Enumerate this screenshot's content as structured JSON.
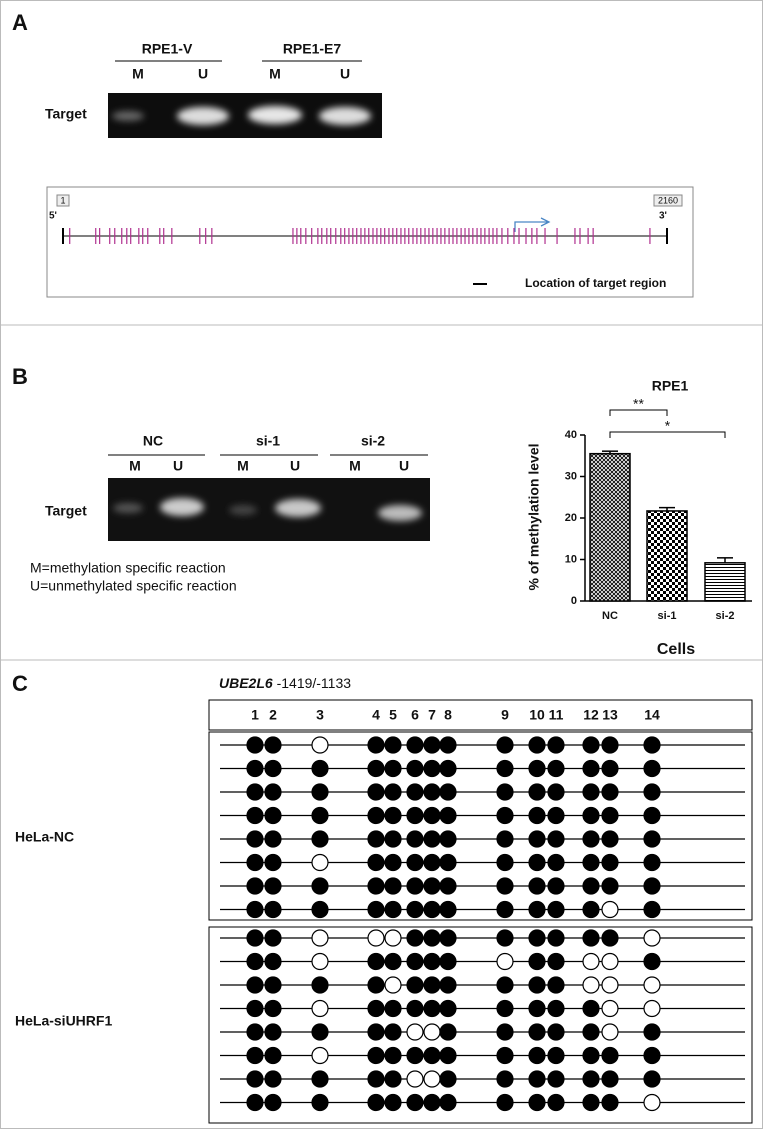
{
  "panel_a": {
    "label": "A",
    "gel": {
      "groups": [
        "RPE1-V",
        "RPE1-E7"
      ],
      "lanes": [
        "M",
        "U",
        "M",
        "U"
      ],
      "row_label": "Target"
    },
    "map": {
      "start": 1,
      "end": 2160,
      "five_prime": "5'",
      "three_prime": "3'",
      "legend": "Location of target region",
      "cpg_positions": [
        25,
        118,
        132,
        168,
        186,
        211,
        229,
        243,
        272,
        286,
        304,
        347,
        361,
        390,
        490,
        511,
        533,
        823,
        837,
        851,
        869,
        890,
        912,
        926,
        944,
        958,
        976,
        994,
        1008,
        1023,
        1037,
        1051,
        1066,
        1080,
        1094,
        1109,
        1123,
        1137,
        1151,
        1166,
        1180,
        1194,
        1209,
        1223,
        1237,
        1252,
        1266,
        1280,
        1295,
        1309,
        1323,
        1338,
        1352,
        1366,
        1381,
        1395,
        1409,
        1424,
        1438,
        1452,
        1466,
        1481,
        1495,
        1509,
        1524,
        1538,
        1552,
        1570,
        1591,
        1613,
        1631,
        1656,
        1677,
        1695,
        1724,
        1767,
        1831,
        1849,
        1878,
        1896,
        2099
      ]
    }
  },
  "panel_b": {
    "label": "B",
    "gel": {
      "groups": [
        "NC",
        "si-1",
        "si-2"
      ],
      "lanes": [
        "M",
        "U",
        "M",
        "U",
        "M",
        "U"
      ],
      "row_label": "Target"
    },
    "legend": [
      "M=methylation specific reaction",
      "U=unmethylated specific reaction"
    ]
  },
  "chart_data": {
    "type": "bar",
    "title": "RPE1",
    "x_label": "Cells",
    "y_label": "% of methylation level",
    "categories": [
      "NC",
      "si-1",
      "si-2"
    ],
    "values": [
      35.5,
      21.7,
      9.2
    ],
    "errors": [
      0.6,
      0.8,
      1.2
    ],
    "ylim": [
      0,
      40
    ],
    "yticks": [
      0,
      10,
      20,
      30,
      40
    ],
    "annotations": [
      "**",
      "*"
    ]
  },
  "panel_c": {
    "label": "C",
    "gene": "UBE2L6",
    "region": "-1419/-1133",
    "sites": [
      1,
      2,
      3,
      4,
      5,
      6,
      7,
      8,
      9,
      10,
      11,
      12,
      13,
      14
    ],
    "groups": [
      {
        "label": "HeLa-NC",
        "rows": [
          [
            1,
            1,
            0,
            1,
            1,
            1,
            1,
            1,
            1,
            1,
            1,
            1,
            1,
            1
          ],
          [
            1,
            1,
            1,
            1,
            1,
            1,
            1,
            1,
            1,
            1,
            1,
            1,
            1,
            1
          ],
          [
            1,
            1,
            1,
            1,
            1,
            1,
            1,
            1,
            1,
            1,
            1,
            1,
            1,
            1
          ],
          [
            1,
            1,
            1,
            1,
            1,
            1,
            1,
            1,
            1,
            1,
            1,
            1,
            1,
            1
          ],
          [
            1,
            1,
            1,
            1,
            1,
            1,
            1,
            1,
            1,
            1,
            1,
            1,
            1,
            1
          ],
          [
            1,
            1,
            0,
            1,
            1,
            1,
            1,
            1,
            1,
            1,
            1,
            1,
            1,
            1
          ],
          [
            1,
            1,
            1,
            1,
            1,
            1,
            1,
            1,
            1,
            1,
            1,
            1,
            1,
            1
          ],
          [
            1,
            1,
            1,
            1,
            1,
            1,
            1,
            1,
            1,
            1,
            1,
            1,
            0,
            1
          ]
        ]
      },
      {
        "label": "HeLa-siUHRF1",
        "rows": [
          [
            1,
            1,
            0,
            0,
            0,
            1,
            1,
            1,
            1,
            1,
            1,
            1,
            1,
            0
          ],
          [
            1,
            1,
            0,
            1,
            1,
            1,
            1,
            1,
            0,
            1,
            1,
            0,
            0,
            1
          ],
          [
            1,
            1,
            1,
            1,
            0,
            1,
            1,
            1,
            1,
            1,
            1,
            0,
            0,
            0
          ],
          [
            1,
            1,
            0,
            1,
            1,
            1,
            1,
            1,
            1,
            1,
            1,
            1,
            0,
            0
          ],
          [
            1,
            1,
            1,
            1,
            1,
            0,
            0,
            1,
            1,
            1,
            1,
            1,
            0,
            1
          ],
          [
            1,
            1,
            0,
            1,
            1,
            1,
            1,
            1,
            1,
            1,
            1,
            1,
            1,
            1
          ],
          [
            1,
            1,
            1,
            1,
            1,
            0,
            0,
            1,
            1,
            1,
            1,
            1,
            1,
            1
          ],
          [
            1,
            1,
            1,
            1,
            1,
            1,
            1,
            1,
            1,
            1,
            1,
            1,
            1,
            0
          ]
        ]
      }
    ]
  }
}
